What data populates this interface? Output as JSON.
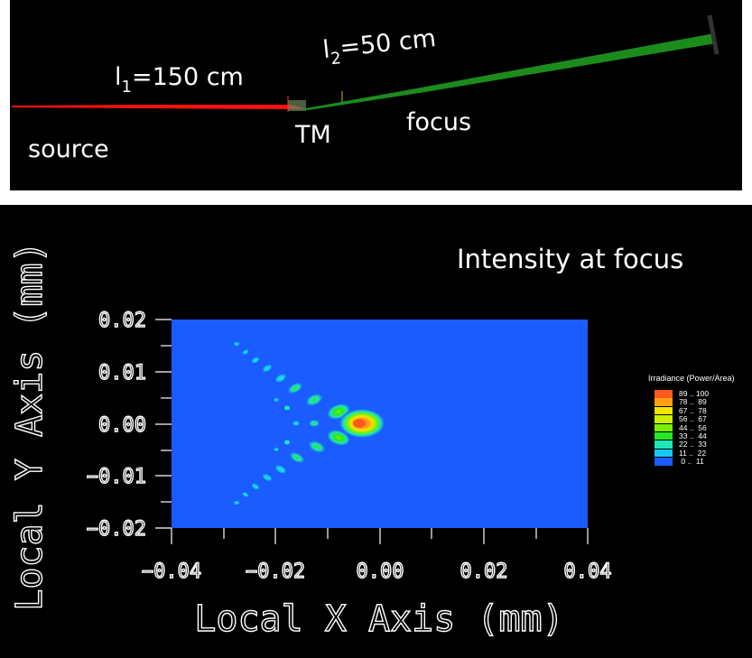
{
  "diagram": {
    "labels": {
      "source": "source",
      "tm": "TM",
      "focus": "focus",
      "l1_prefix": "l",
      "l1_sub": "1",
      "l1_value": "=150 cm",
      "l2_prefix": "l",
      "l2_sub": "2",
      "l2_value": "=50 cm"
    },
    "colors": {
      "incoming_beam": "#ff0000",
      "outgoing_beam": "#1a9a1a",
      "panel_bg": "#000000"
    }
  },
  "plot": {
    "title": "Intensity at focus",
    "xlabel": "Local X Axis (mm)",
    "ylabel": "Local Y Axis (mm)",
    "xticks": [
      "-0.04",
      "-0.02",
      "0.00",
      "0.02",
      "0.04"
    ],
    "yticks": [
      "0.02",
      "0.01",
      "0.00",
      "-0.01",
      "-0.02"
    ],
    "background_color": "#1a5cff"
  },
  "legend": {
    "title": "Irradiance (Power/Area)",
    "items": [
      {
        "label": "89 .. 100",
        "color": "#ff5a1e"
      },
      {
        "label": "78 ..  89",
        "color": "#ffa014"
      },
      {
        "label": "67 ..  78",
        "color": "#f2e600"
      },
      {
        "label": "56 ..  67",
        "color": "#c8f000"
      },
      {
        "label": "44 ..  56",
        "color": "#78f000"
      },
      {
        "label": "33 ..  44",
        "color": "#28e628"
      },
      {
        "label": "22 ..  33",
        "color": "#1ee6b4"
      },
      {
        "label": "11 ..  22",
        "color": "#14c8f0"
      },
      {
        "label": " 0 ..  11",
        "color": "#1a5cff"
      }
    ]
  },
  "chart_data": {
    "type": "heatmap",
    "title": "Intensity at focus",
    "xlabel": "Local X Axis (mm)",
    "ylabel": "Local Y Axis (mm)",
    "xlim": [
      -0.04,
      0.04
    ],
    "ylim": [
      -0.02,
      0.02
    ],
    "colorbar": "Irradiance (Power/Area)",
    "peaks": [
      {
        "x": -0.004,
        "y": 0.0,
        "level": "89 .. 100"
      },
      {
        "x": -0.009,
        "y": 0.0025,
        "level": "56 .. 67"
      },
      {
        "x": -0.009,
        "y": -0.0025,
        "level": "56 .. 67"
      },
      {
        "x": -0.013,
        "y": 0.004,
        "level": "33 .. 44"
      },
      {
        "x": -0.013,
        "y": -0.004,
        "level": "33 .. 44"
      },
      {
        "x": -0.0135,
        "y": 0.0,
        "level": "22 .. 33"
      }
    ]
  }
}
